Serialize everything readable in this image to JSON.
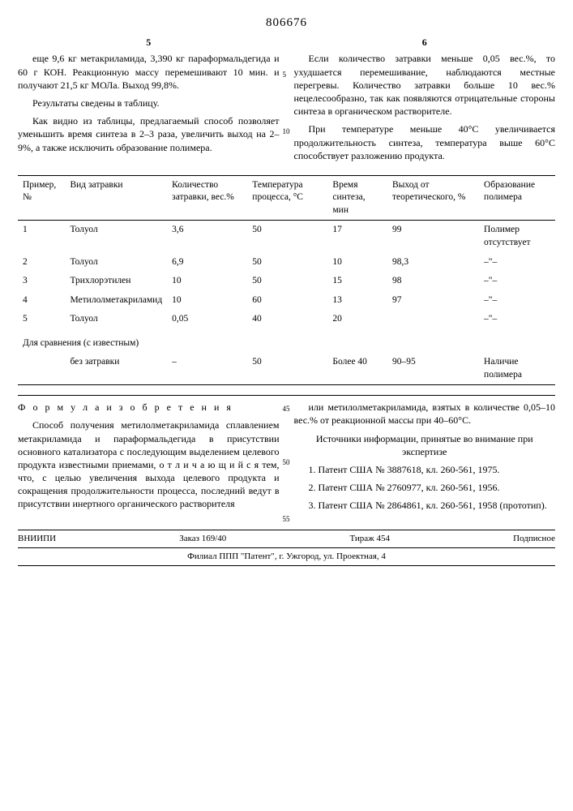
{
  "patent_number": "806676",
  "col_left_num": "5",
  "col_right_num": "6",
  "left_paras": [
    "еще 9,6 кг метакриламида, 3,390 кг параформальдегида и 60 г КОН. Реакционную массу перемешивают 10 мин. и получают 21,5 кг МОЛа. Выход 99,8%.",
    "Результаты сведены в таблицу.",
    "Как видно из таблицы, предлагаемый способ позволяет уменьшить время синтеза в 2–3 раза, увеличить выход на 2–9%, а также исключить образование полимера."
  ],
  "right_paras": [
    "Если количество затравки меньше 0,05 вес.%, то ухудшается перемешивание, наблюдаются местные перегревы. Количество затравки больше 10 вес.% нецелесообразно, так как появляются отрицательные стороны синтеза в органическом растворителе.",
    "При температуре меньше 40°С увеличивается продолжительность синтеза, температура выше 60°С способствует разложению продукта."
  ],
  "line_marks": {
    "left5": "5",
    "left10": "10"
  },
  "table": {
    "headers": [
      "Пример, №",
      "Вид затравки",
      "Количество затравки, вес.%",
      "Температура процесса, °С",
      "Время синтеза, мин",
      "Выход от теоретического, %",
      "Образование полимера"
    ],
    "rows": [
      [
        "1",
        "Толуол",
        "3,6",
        "50",
        "17",
        "99",
        "Полимер отсутствует"
      ],
      [
        "2",
        "Толуол",
        "6,9",
        "50",
        "10",
        "98,3",
        "–\"–"
      ],
      [
        "3",
        "Трихлорэтилен",
        "10",
        "50",
        "15",
        "98",
        "–\"–"
      ],
      [
        "4",
        "Метилолметакриламид",
        "10",
        "60",
        "13",
        "97",
        "–\"–"
      ],
      [
        "5",
        "Толуол",
        "0,05",
        "40",
        "20",
        "",
        "–\"–"
      ]
    ],
    "compare_label": "Для сравнения (с известным)",
    "compare_row": [
      "",
      "без затравки",
      "–",
      "50",
      "Более 40",
      "90–95",
      "Наличие полимера"
    ]
  },
  "formula_title": "Ф о р м у л а   и з о б р е т е н и я",
  "formula_left": "Способ получения метилолметакриламида сплавлением метакриламида и параформальдегида в присутствии основного катализатора с последующим выделением целевого продукта известными приемами, о т л и ч а ю щ и й с я  тем, что, с целью увеличения выхода целевого продукта и сокращения продолжительности процесса, последний ведут в присутствии инертного органического растворителя",
  "formula_right_top": "или метилолметакриламида, взятых в количестве 0,05–10 вес.% от реакционной массы при 40–60°С.",
  "sources_title": "Источники информации, принятые во внимание при экспертизе",
  "sources": [
    "1. Патент США № 3887618, кл. 260-561, 1975.",
    "2. Патент США № 2760977, кл. 260-561, 1956.",
    "3. Патент США № 2864861, кл. 260-561, 1958 (прототип)."
  ],
  "line_marks2": {
    "l45": "45",
    "l50": "50",
    "l55": "55"
  },
  "footer": {
    "org": "ВНИИПИ",
    "order": "Заказ 169/40",
    "tirazh": "Тираж 454",
    "sub": "Подписное"
  },
  "footer2": "Филиал ППП \"Патент\", г. Ужгород, ул. Проектная, 4"
}
